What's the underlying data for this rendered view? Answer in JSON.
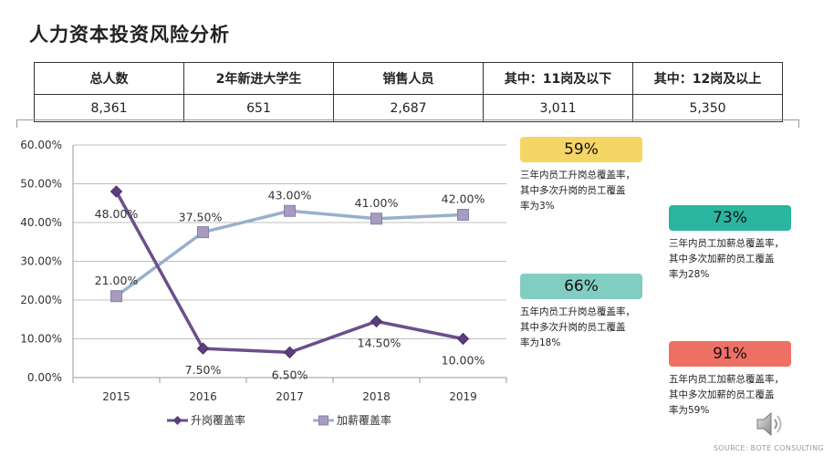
{
  "title": "人力资本投资风险分析",
  "summary": {
    "headers": [
      "总人数",
      "2年新进大学生",
      "销售人员",
      "其中：11岗及以下",
      "其中：12岗及以上"
    ],
    "values": [
      "8,361",
      "651",
      "2,687",
      "3,011",
      "5,350"
    ]
  },
  "chart_data": {
    "type": "line",
    "x": [
      "2015",
      "2016",
      "2017",
      "2018",
      "2019"
    ],
    "ylim": [
      0,
      60
    ],
    "yticks": [
      "0.00%",
      "10.00%",
      "20.00%",
      "30.00%",
      "40.00%",
      "50.00%",
      "60.00%"
    ],
    "series": [
      {
        "name": "升岗覆盖率",
        "values": [
          48.0,
          7.5,
          6.5,
          14.5,
          10.0
        ],
        "labels": [
          "48.00%",
          "7.50%",
          "6.50%",
          "14.50%",
          "10.00%"
        ],
        "color": "#6b4f8c",
        "marker": "diamond"
      },
      {
        "name": "加薪覆盖率",
        "values": [
          21.0,
          37.5,
          43.0,
          41.0,
          42.0
        ],
        "labels": [
          "21.00%",
          "37.50%",
          "43.00%",
          "41.00%",
          "42.00%"
        ],
        "color": "#98b0cc",
        "marker": "square"
      }
    ],
    "grid": true,
    "legend": "bottom"
  },
  "stats": [
    {
      "value": "59%",
      "color": "#f5d565",
      "line1": "三年内员工升岗总覆盖率，",
      "line2": "其中多次升岗的员工覆盖",
      "line3": "率为3%"
    },
    {
      "value": "73%",
      "color": "#2ab5a0",
      "line1": "三年内员工加薪总覆盖率，",
      "line2": "其中多次加薪的员工覆盖",
      "line3": "率为28%"
    },
    {
      "value": "66%",
      "color": "#82cdc1",
      "line1": "五年内员工升岗总覆盖率，",
      "line2": "其中多次升岗的员工覆盖",
      "line3": "率为18%"
    },
    {
      "value": "91%",
      "color": "#ee7065",
      "line1": "五年内员工加薪总覆盖率，",
      "line2": "其中多次加薪的员工覆盖",
      "line3": "率为59%"
    }
  ],
  "source": "SOURCE: BOTE CONSULTING",
  "icons": {
    "speaker": "speaker-icon"
  }
}
